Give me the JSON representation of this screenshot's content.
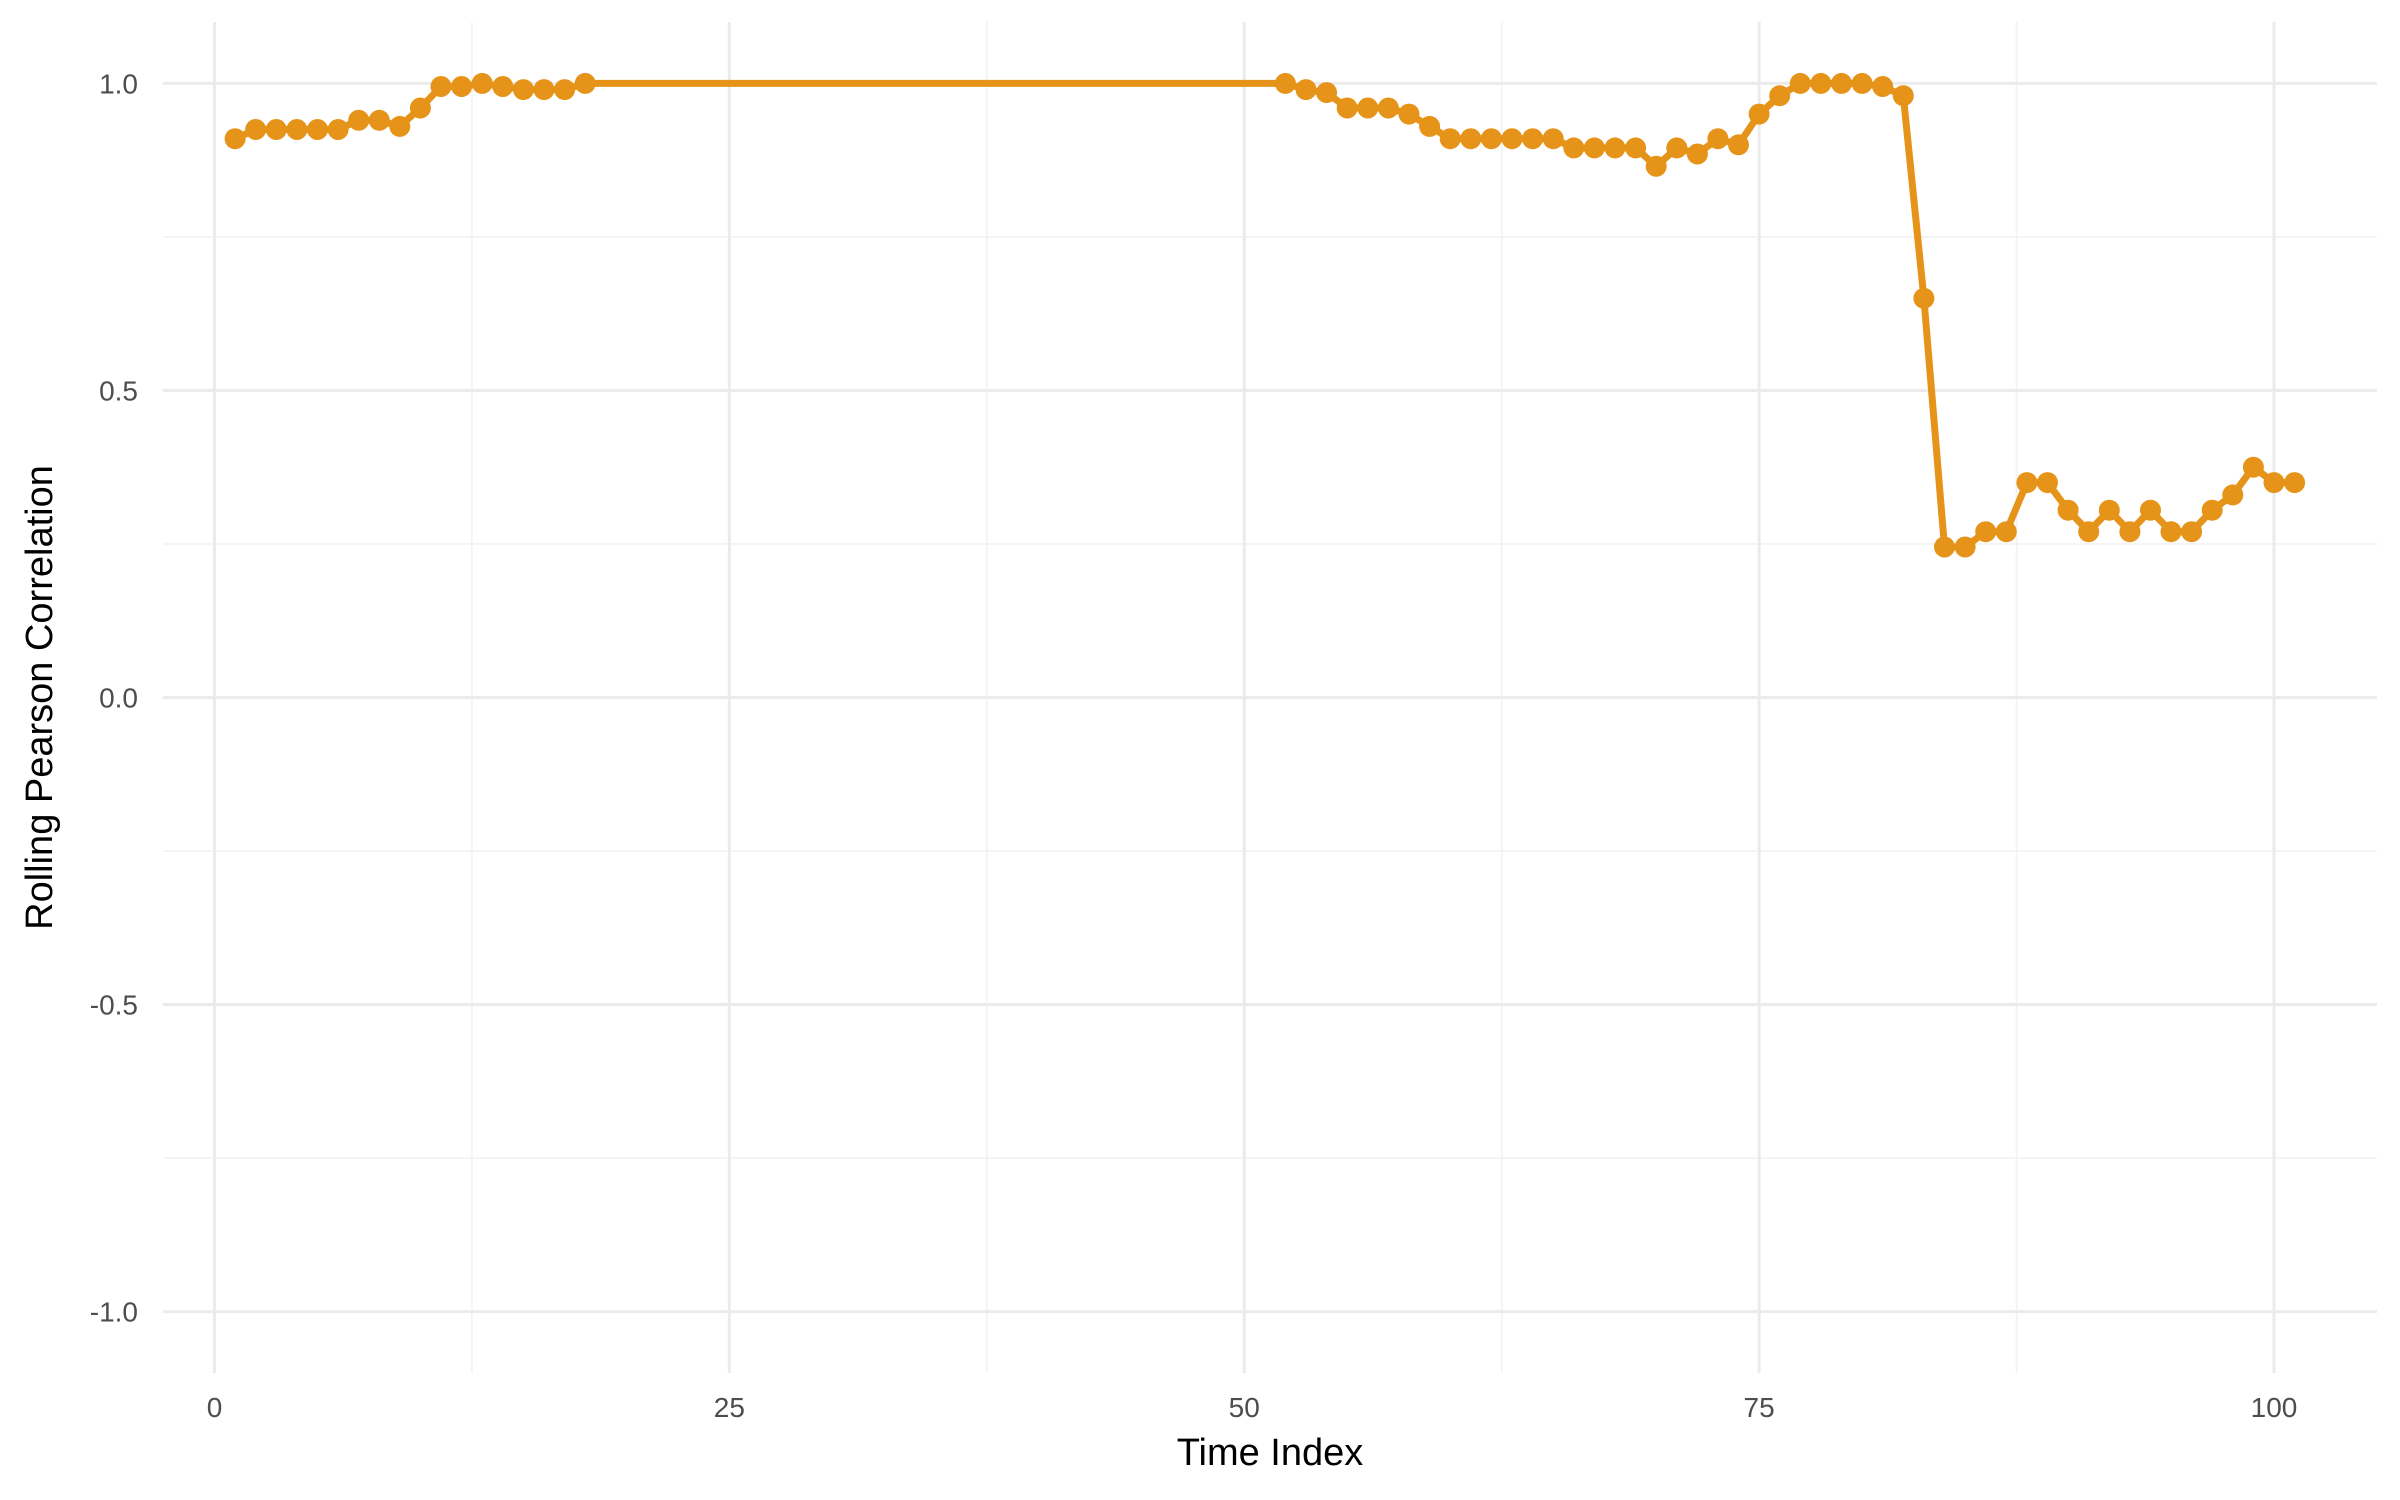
{
  "chart_data": {
    "type": "line",
    "title": "",
    "xlabel": "Time Index",
    "ylabel": "Rolling Pearson Correlation",
    "xlim": [
      -2.5,
      105
    ],
    "ylim": [
      -1.1,
      1.1
    ],
    "x_ticks": [
      0,
      25,
      50,
      75,
      100
    ],
    "x_tick_labels": [
      "0",
      "25",
      "50",
      "75",
      "100"
    ],
    "y_ticks": [
      -1.0,
      -0.5,
      0.0,
      0.5,
      1.0
    ],
    "y_tick_labels": [
      "-1.0",
      "-0.5",
      "0.0",
      "0.5",
      "1.0"
    ],
    "grid": true,
    "legend": "none",
    "series": [
      {
        "color": "#E69419",
        "points": [
          [
            1,
            0.91
          ],
          [
            2,
            0.925
          ],
          [
            3,
            0.925
          ],
          [
            4,
            0.925
          ],
          [
            5,
            0.925
          ],
          [
            6,
            0.925
          ],
          [
            7,
            0.94
          ],
          [
            8,
            0.94
          ],
          [
            9,
            0.93
          ],
          [
            10,
            0.96
          ],
          [
            11,
            0.995
          ],
          [
            12,
            0.995
          ],
          [
            13,
            1.0
          ],
          [
            14,
            0.995
          ],
          [
            15,
            0.99
          ],
          [
            16,
            0.99
          ],
          [
            17,
            0.99
          ],
          [
            18,
            1.0
          ],
          [
            52,
            1.0
          ],
          [
            53,
            0.99
          ],
          [
            54,
            0.985
          ],
          [
            55,
            0.96
          ],
          [
            56,
            0.96
          ],
          [
            57,
            0.96
          ],
          [
            58,
            0.95
          ],
          [
            59,
            0.93
          ],
          [
            60,
            0.91
          ],
          [
            61,
            0.91
          ],
          [
            62,
            0.91
          ],
          [
            63,
            0.91
          ],
          [
            64,
            0.91
          ],
          [
            65,
            0.91
          ],
          [
            66,
            0.895
          ],
          [
            67,
            0.895
          ],
          [
            68,
            0.895
          ],
          [
            69,
            0.895
          ],
          [
            70,
            0.865
          ],
          [
            71,
            0.895
          ],
          [
            72,
            0.885
          ],
          [
            73,
            0.91
          ],
          [
            74,
            0.9
          ],
          [
            75,
            0.95
          ],
          [
            76,
            0.98
          ],
          [
            77,
            1.0
          ],
          [
            78,
            1.0
          ],
          [
            79,
            1.0
          ],
          [
            80,
            1.0
          ],
          [
            81,
            0.995
          ],
          [
            82,
            0.98
          ],
          [
            83,
            0.65
          ],
          [
            84,
            0.245
          ],
          [
            85,
            0.245
          ],
          [
            86,
            0.27
          ],
          [
            87,
            0.27
          ],
          [
            88,
            0.35
          ],
          [
            89,
            0.35
          ],
          [
            90,
            0.305
          ],
          [
            91,
            0.27
          ],
          [
            92,
            0.305
          ],
          [
            93,
            0.27
          ],
          [
            94,
            0.305
          ],
          [
            95,
            0.27
          ],
          [
            96,
            0.27
          ],
          [
            97,
            0.305
          ],
          [
            98,
            0.33
          ],
          [
            99,
            0.375
          ],
          [
            100,
            0.35
          ],
          [
            101,
            0.35
          ]
        ]
      }
    ]
  }
}
